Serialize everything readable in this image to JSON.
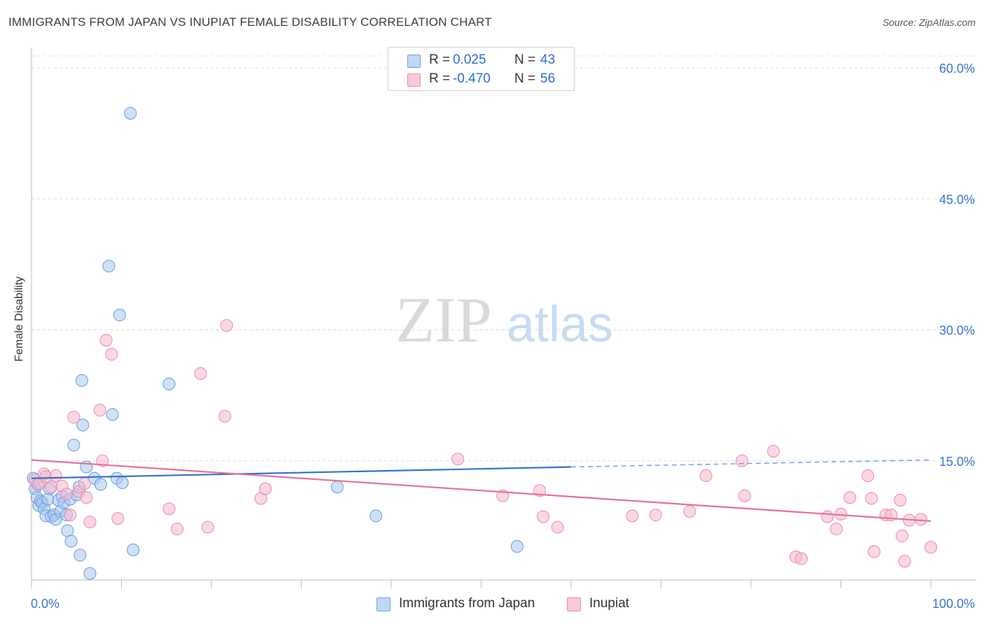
{
  "title": "IMMIGRANTS FROM JAPAN VS INUPIAT FEMALE DISABILITY CORRELATION CHART",
  "source": "Source: ZipAtlas.com",
  "watermark": {
    "zip": "ZIP",
    "atlas": "atlas"
  },
  "colors": {
    "blue_fill": "#a9c8f0",
    "blue_stroke": "#6e9fde",
    "blue_line": "#2f74d0",
    "pink_fill": "#f5b8cc",
    "pink_stroke": "#eb8fae",
    "pink_line": "#e5709a",
    "grid": "#dcdcdc",
    "tick_label": "#3a73cf",
    "axis": "#bbbbbb"
  },
  "legend": {
    "rows": [
      {
        "r_label": "R =",
        "r_value": "0.025",
        "n_label": "N =",
        "n_value": "43"
      },
      {
        "r_label": "R =",
        "r_value": "-0.470",
        "n_label": "N =",
        "n_value": "56"
      }
    ]
  },
  "bottom_legend": [
    "Immigrants from Japan",
    "Inupiat"
  ],
  "chart_data": {
    "type": "scatter",
    "title": "IMMIGRANTS FROM JAPAN VS INUPIAT FEMALE DISABILITY CORRELATION CHART",
    "xlabel": "",
    "ylabel": "Female Disability",
    "xlim": [
      0,
      100
    ],
    "ylim": [
      0,
      60
    ],
    "x_tick_labels": [
      {
        "value": 0,
        "label": "0.0%"
      },
      {
        "value": 100,
        "label": "100.0%"
      }
    ],
    "y_tick_labels": [
      {
        "value": 15,
        "label": "15.0%"
      },
      {
        "value": 30,
        "label": "30.0%"
      },
      {
        "value": 45,
        "label": "45.0%"
      },
      {
        "value": 60,
        "label": "60.0%"
      }
    ],
    "series": [
      {
        "name": "Immigrants from Japan",
        "r": 0.025,
        "n": 43,
        "trend": {
          "x0": 0,
          "y0": 13.0,
          "x1": 60,
          "y1": 14.3,
          "dashed_to_x": 100,
          "dashed_to_y": 15.1
        },
        "points": [
          [
            0.2,
            13.0
          ],
          [
            0.4,
            11.8
          ],
          [
            0.6,
            10.8
          ],
          [
            0.7,
            12.3
          ],
          [
            0.8,
            9.9
          ],
          [
            1.0,
            10.4
          ],
          [
            1.2,
            10.2
          ],
          [
            1.4,
            9.5
          ],
          [
            1.6,
            8.7
          ],
          [
            1.8,
            10.6
          ],
          [
            2.0,
            11.8
          ],
          [
            2.2,
            8.6
          ],
          [
            2.5,
            8.8
          ],
          [
            2.7,
            8.3
          ],
          [
            3.0,
            10.5
          ],
          [
            3.2,
            9.2
          ],
          [
            3.4,
            10.9
          ],
          [
            3.6,
            10.2
          ],
          [
            3.9,
            8.8
          ],
          [
            4.0,
            7.0
          ],
          [
            4.3,
            10.6
          ],
          [
            4.4,
            5.8
          ],
          [
            4.7,
            16.8
          ],
          [
            5.0,
            11.1
          ],
          [
            5.3,
            12.0
          ],
          [
            5.4,
            4.2
          ],
          [
            5.6,
            24.2
          ],
          [
            5.7,
            19.1
          ],
          [
            6.1,
            14.3
          ],
          [
            6.5,
            2.1
          ],
          [
            7.0,
            13.0
          ],
          [
            7.7,
            12.3
          ],
          [
            8.6,
            37.3
          ],
          [
            9.0,
            20.3
          ],
          [
            9.5,
            13.0
          ],
          [
            9.8,
            31.7
          ],
          [
            10.1,
            12.5
          ],
          [
            11.0,
            54.8
          ],
          [
            11.3,
            4.8
          ],
          [
            15.3,
            23.8
          ],
          [
            34.0,
            12.0
          ],
          [
            38.3,
            8.7
          ],
          [
            54.0,
            5.2
          ]
        ]
      },
      {
        "name": "Inupiat",
        "r": -0.47,
        "n": 56,
        "trend": {
          "x0": 0,
          "y0": 15.1,
          "x1": 100,
          "y1": 8.1
        },
        "points": [
          [
            0.4,
            12.8
          ],
          [
            0.9,
            12.4
          ],
          [
            1.4,
            13.5
          ],
          [
            1.6,
            13.2
          ],
          [
            2.2,
            12.0
          ],
          [
            2.7,
            13.3
          ],
          [
            3.4,
            12.1
          ],
          [
            3.9,
            11.2
          ],
          [
            4.3,
            8.8
          ],
          [
            4.7,
            20.0
          ],
          [
            5.3,
            11.5
          ],
          [
            5.9,
            12.4
          ],
          [
            6.1,
            10.8
          ],
          [
            6.5,
            8.0
          ],
          [
            7.6,
            20.8
          ],
          [
            7.9,
            15.0
          ],
          [
            8.3,
            28.8
          ],
          [
            8.9,
            27.2
          ],
          [
            9.6,
            8.4
          ],
          [
            15.3,
            9.5
          ],
          [
            16.2,
            7.2
          ],
          [
            18.8,
            25.0
          ],
          [
            19.6,
            7.4
          ],
          [
            21.5,
            20.1
          ],
          [
            21.7,
            30.5
          ],
          [
            25.5,
            10.7
          ],
          [
            26.0,
            11.8
          ],
          [
            47.4,
            15.2
          ],
          [
            52.4,
            11.0
          ],
          [
            56.5,
            11.6
          ],
          [
            56.9,
            8.6
          ],
          [
            58.5,
            7.4
          ],
          [
            66.8,
            8.7
          ],
          [
            69.4,
            8.8
          ],
          [
            73.2,
            9.2
          ],
          [
            75.0,
            13.3
          ],
          [
            79.0,
            15.0
          ],
          [
            79.3,
            11.0
          ],
          [
            82.5,
            16.1
          ],
          [
            85.0,
            4.0
          ],
          [
            85.6,
            3.8
          ],
          [
            88.5,
            8.6
          ],
          [
            89.5,
            7.2
          ],
          [
            90.0,
            8.9
          ],
          [
            91.0,
            10.8
          ],
          [
            93.0,
            13.3
          ],
          [
            93.4,
            10.7
          ],
          [
            93.7,
            4.6
          ],
          [
            95.0,
            8.8
          ],
          [
            95.6,
            8.8
          ],
          [
            96.6,
            10.5
          ],
          [
            96.8,
            6.4
          ],
          [
            97.1,
            3.5
          ],
          [
            97.6,
            8.2
          ],
          [
            98.9,
            8.3
          ],
          [
            100.0,
            5.1
          ]
        ]
      }
    ]
  }
}
